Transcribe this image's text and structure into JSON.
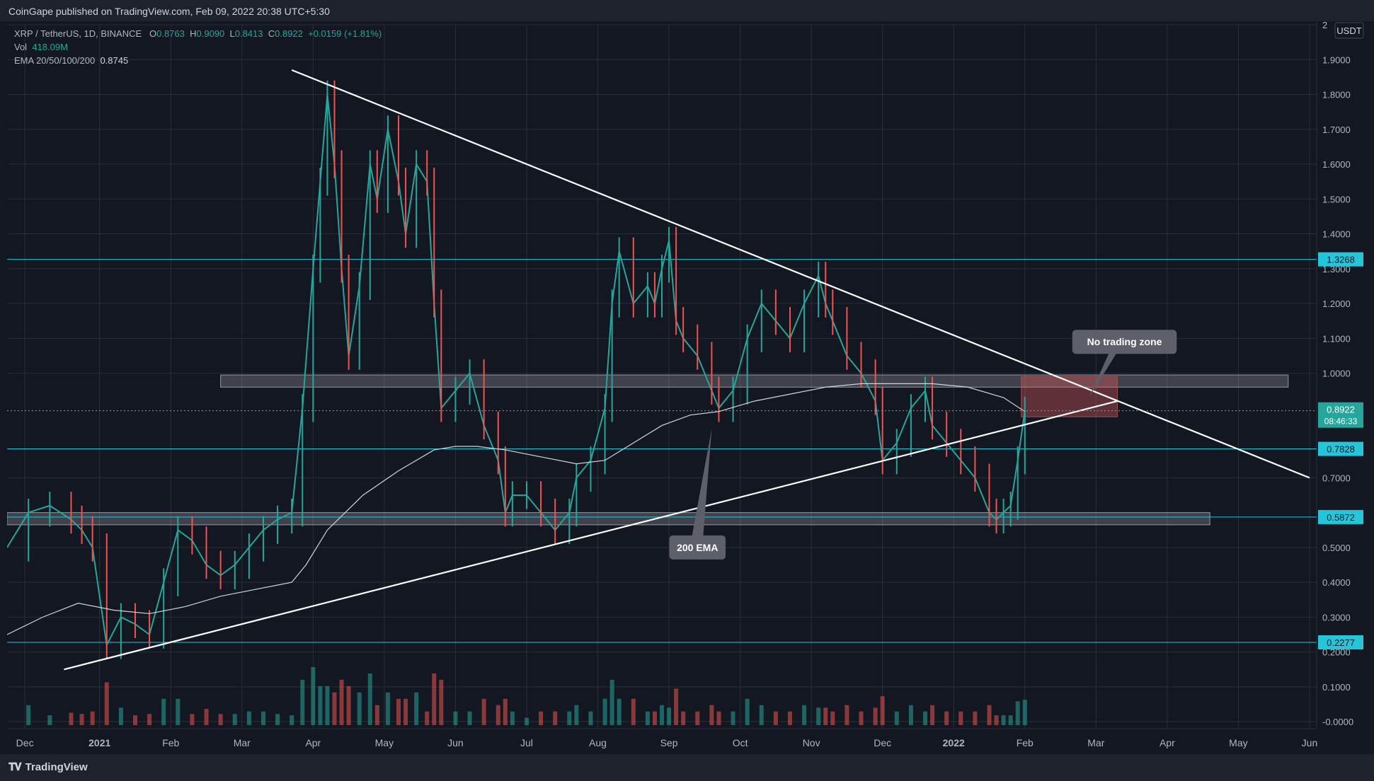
{
  "header": {
    "published": "CoinGape published on TradingView.com, Feb 09, 2022 20:38 UTC+5:30"
  },
  "legend": {
    "symbol": "XRP / TetherUS, 1D, BINANCE",
    "open_label": "O",
    "open": "0.8763",
    "high_label": "H",
    "high": "0.9090",
    "low_label": "L",
    "low": "0.8413",
    "close_label": "C",
    "close": "0.8922",
    "change": "+0.0159 (+1.81%)",
    "vol_label": "Vol",
    "vol": "418.09M",
    "ema_label": "EMA 20/50/100/200",
    "ema": "0.8745"
  },
  "footer": {
    "brand": "TradingView"
  },
  "chart_data": {
    "type": "line",
    "ylim": [
      -0.02,
      2.0
    ],
    "currency_label": "USDT",
    "y_ticks": [
      {
        "v": 0.0,
        "t": "-0.0000"
      },
      {
        "v": 0.1,
        "t": "0.1000"
      },
      {
        "v": 0.2,
        "t": "0.2000"
      },
      {
        "v": 0.3,
        "t": "0.3000"
      },
      {
        "v": 0.4,
        "t": "0.4000"
      },
      {
        "v": 0.5,
        "t": "0.5000"
      },
      {
        "v": 0.7,
        "t": "0.7000"
      },
      {
        "v": 1.0,
        "t": "1.0000"
      },
      {
        "v": 1.1,
        "t": "1.1000"
      },
      {
        "v": 1.2,
        "t": "1.2000"
      },
      {
        "v": 1.3,
        "t": "1.3000"
      },
      {
        "v": 1.4,
        "t": "1.4000"
      },
      {
        "v": 1.5,
        "t": "1.5000"
      },
      {
        "v": 1.6,
        "t": "1.6000"
      },
      {
        "v": 1.7,
        "t": "1.7000"
      },
      {
        "v": 1.8,
        "t": "1.8000"
      },
      {
        "v": 1.9,
        "t": "1.9000"
      },
      {
        "v": 2.0,
        "t": "2"
      }
    ],
    "x_ticks": [
      {
        "label": "Dec",
        "x": 0.25,
        "bold": false
      },
      {
        "label": "2021",
        "x": 1.3,
        "bold": true
      },
      {
        "label": "Feb",
        "x": 2.3,
        "bold": false
      },
      {
        "label": "Mar",
        "x": 3.3,
        "bold": false
      },
      {
        "label": "Apr",
        "x": 4.3,
        "bold": false
      },
      {
        "label": "May",
        "x": 5.3,
        "bold": false
      },
      {
        "label": "Jun",
        "x": 6.3,
        "bold": false
      },
      {
        "label": "Jul",
        "x": 7.3,
        "bold": false
      },
      {
        "label": "Aug",
        "x": 8.3,
        "bold": false
      },
      {
        "label": "Sep",
        "x": 9.3,
        "bold": false
      },
      {
        "label": "Oct",
        "x": 10.3,
        "bold": false
      },
      {
        "label": "Nov",
        "x": 11.3,
        "bold": false
      },
      {
        "label": "Dec",
        "x": 12.3,
        "bold": false
      },
      {
        "label": "2022",
        "x": 13.3,
        "bold": true
      },
      {
        "label": "Feb",
        "x": 14.3,
        "bold": false
      },
      {
        "label": "Mar",
        "x": 15.3,
        "bold": false
      },
      {
        "label": "Apr",
        "x": 16.3,
        "bold": false
      },
      {
        "label": "May",
        "x": 17.3,
        "bold": false
      },
      {
        "label": "Jun",
        "x": 18.3,
        "bold": false
      }
    ],
    "series": [
      {
        "kind": "price",
        "x": [
          0,
          0.3,
          0.6,
          0.9,
          1.05,
          1.2,
          1.4,
          1.6,
          1.8,
          2.0,
          2.2,
          2.4,
          2.6,
          2.8,
          3.0,
          3.2,
          3.4,
          3.6,
          3.8,
          4.0,
          4.15,
          4.3,
          4.4,
          4.5,
          4.6,
          4.7,
          4.8,
          4.95,
          5.1,
          5.2,
          5.35,
          5.5,
          5.6,
          5.75,
          5.9,
          6.0,
          6.1,
          6.3,
          6.5,
          6.7,
          6.9,
          7.0,
          7.1,
          7.3,
          7.5,
          7.7,
          7.9,
          8.0,
          8.2,
          8.4,
          8.5,
          8.6,
          8.8,
          9.0,
          9.1,
          9.2,
          9.3,
          9.4,
          9.5,
          9.7,
          9.9,
          10.0,
          10.2,
          10.4,
          10.6,
          10.8,
          11.0,
          11.2,
          11.4,
          11.5,
          11.6,
          11.8,
          12.0,
          12.2,
          12.3,
          12.5,
          12.7,
          12.9,
          13.0,
          13.2,
          13.4,
          13.6,
          13.8,
          13.9,
          14.0,
          14.1,
          14.2,
          14.3
        ],
        "y": [
          0.5,
          0.6,
          0.62,
          0.58,
          0.55,
          0.5,
          0.22,
          0.3,
          0.28,
          0.25,
          0.4,
          0.55,
          0.52,
          0.45,
          0.42,
          0.45,
          0.5,
          0.55,
          0.58,
          0.6,
          0.9,
          1.3,
          1.55,
          1.8,
          1.6,
          1.3,
          1.05,
          1.25,
          1.6,
          1.5,
          1.7,
          1.55,
          1.4,
          1.6,
          1.55,
          1.2,
          0.9,
          0.95,
          1.0,
          0.85,
          0.75,
          0.6,
          0.65,
          0.65,
          0.6,
          0.55,
          0.6,
          0.7,
          0.75,
          0.9,
          1.2,
          1.35,
          1.2,
          1.25,
          1.2,
          1.3,
          1.38,
          1.15,
          1.1,
          1.05,
          0.95,
          0.9,
          0.95,
          1.1,
          1.2,
          1.15,
          1.1,
          1.2,
          1.28,
          1.2,
          1.15,
          1.05,
          1.0,
          0.92,
          0.75,
          0.8,
          0.9,
          0.95,
          0.85,
          0.8,
          0.75,
          0.7,
          0.6,
          0.58,
          0.6,
          0.62,
          0.75,
          0.8922
        ]
      },
      {
        "kind": "ema200",
        "x": [
          0,
          0.5,
          1.0,
          1.5,
          2.0,
          2.5,
          3.0,
          3.5,
          4.0,
          4.2,
          4.5,
          5.0,
          5.5,
          6.0,
          6.3,
          6.6,
          7.0,
          7.5,
          8.0,
          8.4,
          8.8,
          9.2,
          9.6,
          10.0,
          10.5,
          11.0,
          11.5,
          12.0,
          12.5,
          13.0,
          13.5,
          14.0,
          14.3
        ],
        "y": [
          0.25,
          0.3,
          0.34,
          0.32,
          0.31,
          0.33,
          0.36,
          0.38,
          0.4,
          0.45,
          0.55,
          0.65,
          0.72,
          0.78,
          0.79,
          0.79,
          0.78,
          0.76,
          0.74,
          0.75,
          0.8,
          0.85,
          0.88,
          0.89,
          0.92,
          0.94,
          0.96,
          0.97,
          0.97,
          0.97,
          0.96,
          0.93,
          0.89
        ]
      }
    ],
    "horizontal_levels": [
      {
        "value": 1.3268,
        "label": "1.3268"
      },
      {
        "value": 0.7828,
        "label": "0.7828"
      },
      {
        "value": 0.5872,
        "label": "0.5872"
      },
      {
        "value": 0.2277,
        "label": "0.2277"
      }
    ],
    "current_price": {
      "value": 0.8922,
      "label": "0.8922",
      "countdown": "08:46:33"
    },
    "trendlines": [
      {
        "name": "descending",
        "x1": 4.0,
        "y1": 1.87,
        "x2": 18.3,
        "y2": 0.7
      },
      {
        "name": "ascending",
        "x1": 0.8,
        "y1": 0.15,
        "x2": 15.6,
        "y2": 0.92
      }
    ],
    "zones": [
      {
        "name": "resistance-zone",
        "x1": 3.0,
        "x2": 18.0,
        "y1": 0.96,
        "y2": 0.995
      },
      {
        "name": "support-zone",
        "x1": 0.0,
        "x2": 16.9,
        "y1": 0.565,
        "y2": 0.6
      }
    ],
    "no_trade_zone": {
      "x1": 14.25,
      "x2": 15.6,
      "y1": 0.875,
      "y2": 0.99
    },
    "annotations": [
      {
        "name": "ema-callout",
        "text": "200 EMA",
        "x": 9.7,
        "y": 0.5,
        "tip_x": 9.9,
        "tip_y": 0.84
      },
      {
        "name": "no-trade-callout",
        "text": "No trading zone",
        "x": 15.7,
        "y": 1.09,
        "tip_x": 15.2,
        "tip_y": 0.93
      }
    ],
    "volume_scale": {
      "max_millions": 1500
    }
  }
}
